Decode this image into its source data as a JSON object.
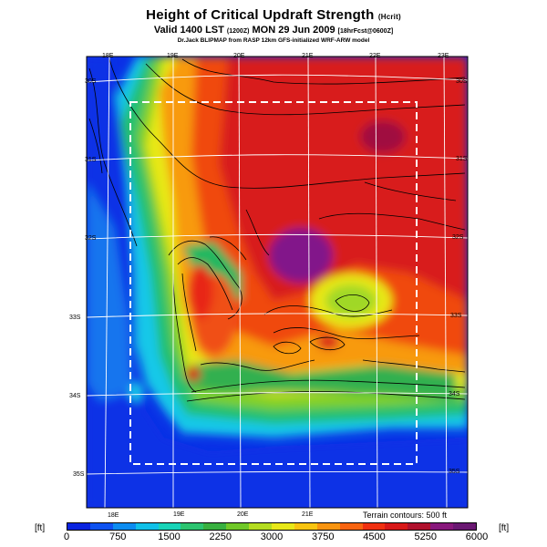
{
  "header": {
    "title": "Height of Critical Updraft Strength",
    "title_unit": "(Hcrit)",
    "valid_main": "Valid 1400 LST",
    "valid_small1": "(1200Z)",
    "valid_date": "MON 29 Jun 2009",
    "valid_small2": "[18hrFcst@0600Z]",
    "credit": "Dr.Jack BLIPMAP from RASP 12km GFS-initialized WRF-ARW model"
  },
  "map": {
    "lon_labels_top": [
      "18E",
      "19E",
      "20E",
      "21E",
      "22E",
      "23E"
    ],
    "lon_labels_bottom": [
      "18E",
      "19E",
      "20E",
      "21E"
    ],
    "lat_labels_right": [
      "30S",
      "31S",
      "32S",
      "33S",
      "34S",
      "35S"
    ],
    "lat_labels_left": [
      "30S",
      "31S",
      "32S",
      "33S",
      "34S",
      "35S"
    ],
    "terrain_note": "Terrain contours: 500 ft"
  },
  "legend": {
    "unit_left": "[ft]",
    "unit_right": "[ft]",
    "tick_labels": [
      "0",
      "750",
      "1500",
      "2250",
      "3000",
      "3750",
      "4500",
      "5250",
      "6000"
    ],
    "colors": [
      "#0a24e0",
      "#0e52f0",
      "#0c8cf0",
      "#10c0e8",
      "#18d4b8",
      "#2cc470",
      "#38b040",
      "#70c828",
      "#b4dc20",
      "#e8e818",
      "#f8c410",
      "#f89410",
      "#f86410",
      "#f03010",
      "#d81818",
      "#b0102c",
      "#88187c",
      "#6a1872"
    ]
  }
}
